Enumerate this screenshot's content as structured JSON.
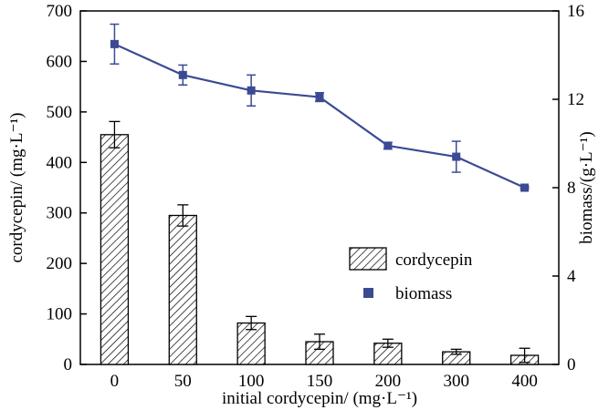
{
  "chart_data": {
    "type": "bar",
    "subtype": "bar+line-dual-axis",
    "title": "",
    "categories": [
      "0",
      "50",
      "100",
      "150",
      "200",
      "300",
      "400"
    ],
    "xlabel": "initial cordycepin/ (mg·L⁻¹)",
    "ylabel_left": "cordycepin/ (mg·L⁻¹)",
    "ylabel_right": "biomass/(g·L⁻¹)",
    "ylim_left": [
      0,
      700
    ],
    "yticks_left": [
      0,
      100,
      200,
      300,
      400,
      500,
      600,
      700
    ],
    "ylim_right": [
      0,
      16
    ],
    "yticks_right": [
      0,
      4,
      8,
      12,
      16
    ],
    "grid": false,
    "legend_position": "center-right",
    "series": [
      {
        "name": "cordycepin",
        "type": "bar",
        "axis": "left",
        "fill": "hatch-diagonal",
        "color": "#000000",
        "values": [
          455,
          295,
          82,
          45,
          42,
          25,
          18
        ],
        "errors": [
          26,
          21,
          13,
          15,
          8,
          5,
          14
        ]
      },
      {
        "name": "biomass",
        "type": "line",
        "axis": "right",
        "marker": "square",
        "color": "#3b4a93",
        "values": [
          14.5,
          13.1,
          12.4,
          12.1,
          9.9,
          9.4,
          8.0
        ],
        "errors": [
          0.9,
          0.45,
          0.7,
          0.2,
          0.15,
          0.7,
          0.05
        ]
      }
    ],
    "colors": {
      "axis": "#000000",
      "background": "#ffffff",
      "line_series": "#3b4a93"
    }
  }
}
